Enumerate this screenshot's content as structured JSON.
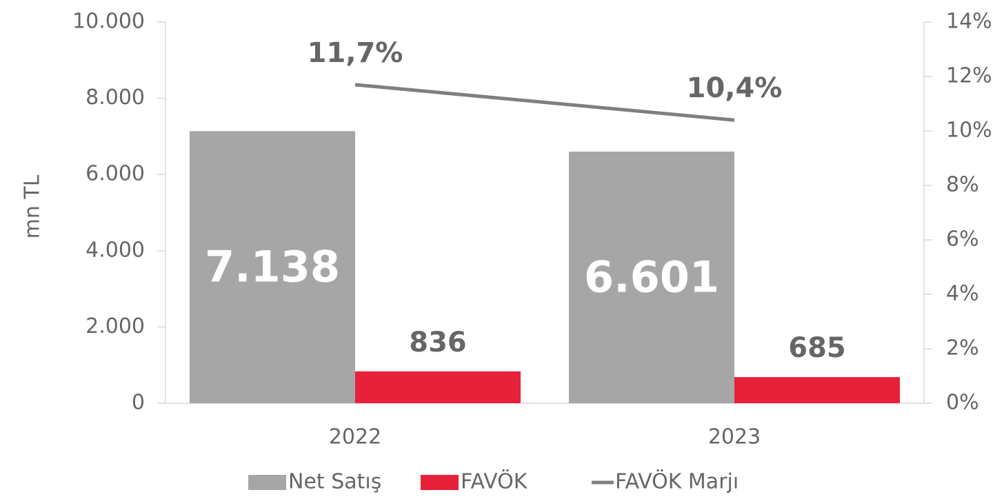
{
  "chart_data": {
    "type": "bar_line",
    "categories": [
      "2022",
      "2023"
    ],
    "y_label": "mn TL",
    "series": [
      {
        "name": "Net Satış",
        "type": "bar",
        "color": "#a6a6a6",
        "values": [
          7138,
          6601
        ],
        "value_labels": [
          "7.138",
          "6.601"
        ]
      },
      {
        "name": "FAVÖK",
        "type": "bar",
        "color": "#e8213a",
        "values": [
          836,
          685
        ]
      },
      {
        "name": "FAVÖK Marjı",
        "type": "line",
        "axis": "y2",
        "color": "#7f7f7f",
        "values": [
          11.7,
          10.4
        ],
        "value_labels": [
          "11,7%",
          "10,4%"
        ]
      }
    ],
    "ylim": [
      0,
      10000
    ],
    "yticks": [
      0,
      {
        "value": 2000,
        "label": "2.000"
      },
      {
        "value": 4000,
        "label": "4.000"
      },
      {
        "value": 6000,
        "label": "6.000"
      },
      {
        "value": 8000,
        "label": "8.000"
      },
      {
        "value": 10000,
        "label": "10.000"
      }
    ],
    "y2lim": [
      0,
      14
    ],
    "y2ticks": [
      {
        "value": 0,
        "label": "0%"
      },
      {
        "value": 2,
        "label": "2%"
      },
      {
        "value": 4,
        "label": "4%"
      },
      {
        "value": 6,
        "label": "6%"
      },
      {
        "value": 8,
        "label": "8%"
      },
      {
        "value": 10,
        "label": "10%"
      },
      {
        "value": 12,
        "label": "12%"
      },
      {
        "value": 14,
        "label": "14%"
      }
    ],
    "legend": "bottom"
  }
}
